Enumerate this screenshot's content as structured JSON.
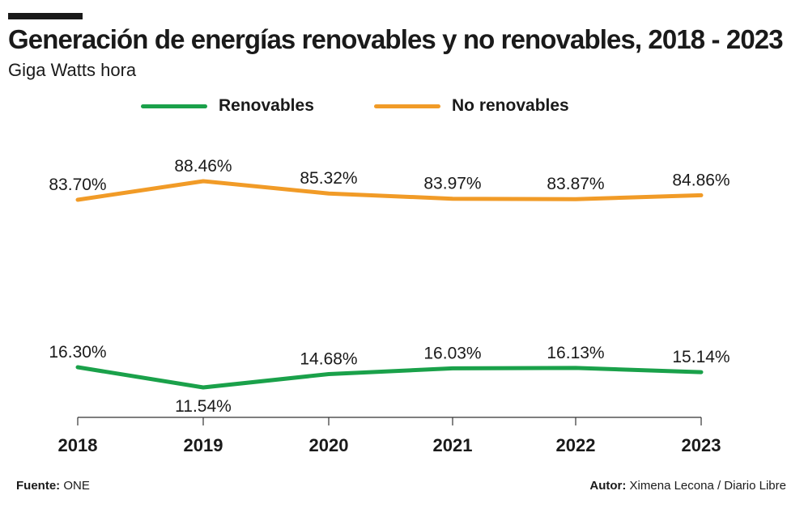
{
  "header": {
    "title": "Generación de energías renovables y no renovables, 2018 - 2023",
    "subtitle": "Giga Watts hora"
  },
  "chart_data": {
    "type": "line",
    "x": [
      "2018",
      "2019",
      "2020",
      "2021",
      "2022",
      "2023"
    ],
    "series": [
      {
        "name": "Renovables",
        "color": "#1aa14a",
        "values": [
          16.3,
          11.54,
          14.68,
          16.03,
          16.13,
          15.14
        ],
        "labels": [
          "16.30%",
          "11.54%",
          "14.68%",
          "16.03%",
          "16.13%",
          "15.14%"
        ]
      },
      {
        "name": "No renovables",
        "color": "#f19b27",
        "values": [
          83.7,
          88.46,
          85.32,
          83.97,
          83.87,
          84.86
        ],
        "labels": [
          "83.70%",
          "88.46%",
          "85.32%",
          "83.97%",
          "83.87%",
          "84.86%"
        ]
      }
    ],
    "legend_position": "top",
    "grid": false
  },
  "footer": {
    "source_label": "Fuente:",
    "source_value": "ONE",
    "author_label": "Autor:",
    "author_value": "Ximena Lecona / Diario Libre"
  }
}
